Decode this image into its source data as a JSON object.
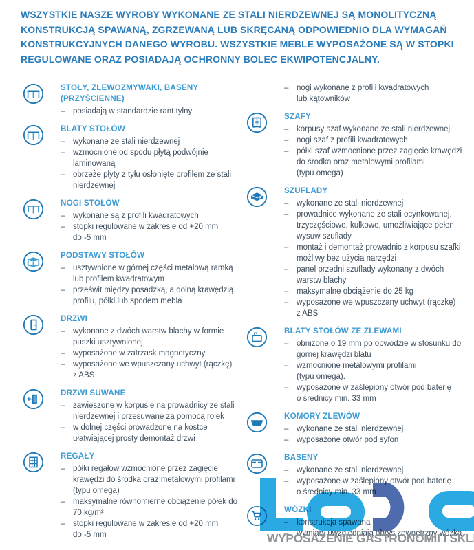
{
  "intro": "WSZYSTKIE NASZE WYROBY  WYKONANE ZE STALI NIERDZEWNEJ SĄ MONOLITYCZNĄ KONSTRUKCJĄ SPAWANĄ, ZGRZEWANĄ LUB SKRĘCANĄ ODPOWIEDNIO DLA WYMAGAŃ KONSTRUKCYJNYCH DANEGO WYROBU. WSZYSTKIE MEBLE WYPOSAŻONE SĄ W STOPKI REGULOWANE ORAZ POSIADAJĄ OCHRONNY BOLEC EKWIPOTENCJALNY.",
  "bullet_marker": "–",
  "columns": {
    "left": [
      {
        "icon": "table-icon",
        "title": "STOŁY, ZLEWOZMYWAKI, BASENY (PRZYŚCIENNE)",
        "bullets": [
          "posiadają w standardzie rant tylny"
        ]
      },
      {
        "icon": "table-icon",
        "title": "BLATY STOŁÓW",
        "bullets": [
          "wykonane ze stali nierdzewnej",
          "wzmocnione od spodu płytą podwójnie\nlaminowaną",
          "obrzeże płyty z tyłu osłonięte profilem ze stali\nnierdzewnej"
        ]
      },
      {
        "icon": "table-legs-icon",
        "title": "NOGI STOŁÓW",
        "bullets": [
          "wykonane są z profili kwadratowych",
          "stopki regulowane w zakresie od +20 mm\ndo -5 mm"
        ]
      },
      {
        "icon": "table-base-icon",
        "title": "PODSTAWY STOŁÓW",
        "bullets": [
          "usztywnione w górnej części  metalową ramką\nlub profilem kwadratowym",
          "prześwit między posadzką, a dolną krawędzią\nprofilu, półki lub spodem mebla"
        ]
      },
      {
        "icon": "door-icon",
        "title": "DRZWI",
        "bullets": [
          "wykonane z dwóch warstw blachy w formie\npuszki usztywnionej",
          "wyposażone w zatrzask magnetyczny",
          "wyposażone we wpuszczany uchwyt (rączkę)\nz ABS"
        ]
      },
      {
        "icon": "sliding-door-icon",
        "title": "DRZWI SUWANE",
        "bullets": [
          "zawieszone w korpusie na prowadnicy ze stali\nnierdzewnej i przesuwane za pomocą rolek",
          "w dolnej części prowadzone na kostce\nułatwiającej prosty demontaż drzwi"
        ]
      },
      {
        "icon": "shelf-rack-icon",
        "title": "REGAŁY",
        "bullets": [
          "półki regałów wzmocnione przez zagięcie\nkrawędzi do środka oraz metalowymi profilami\n(typu omega)",
          "maksymalne równomierne obciążenie półek  do\n70 kg/m²",
          "stopki regulowane w zakresie od +20 mm\ndo -5 mm"
        ]
      }
    ],
    "right": [
      {
        "icon": null,
        "title": "",
        "bullets": [
          "nogi wykonane z profili kwadratowych\nlub kątowników"
        ]
      },
      {
        "icon": "cabinet-icon",
        "title": "SZAFY",
        "bullets": [
          "korpusy szaf wykonane ze stali nierdzewnej",
          "nogi szaf  z profili kwadratowych",
          "półki szaf wzmocnione przez zagięcie krawędzi\ndo środka oraz metalowymi profilami\n(typu omega)"
        ]
      },
      {
        "icon": "drawer-icon",
        "title": "SZUFLADY",
        "bullets": [
          "wykonane ze stali nierdzewnej",
          "prowadnice wykonane ze stali ocynkowanej,\ntrzyczęściowe, kulkowe, umożliwiające pełen\nwysuw szuflady",
          "montaż i demontaż prowadnic z korpusu szafki\nmożliwy bez użycia narzędzi",
          "panel przedni szuflady wykonany z dwóch\nwarstw blachy",
          "maksymalne obciążenie do 25 kg",
          "wyposażone we wpuszczany uchwyt (rączkę)\nz ABS"
        ]
      },
      {
        "icon": "sink-table-icon",
        "title": "BLATY STOŁÓW ZE ZLEWAMI",
        "bullets": [
          "obniżone o 19 mm po obwodzie w stosunku do\ngórnej krawędzi blatu",
          "wzmocnione  metalowymi profilami\n(typu omega).",
          "wyposażone w zaślepiony otwór pod baterię\no średnicy min. 33 mm"
        ]
      },
      {
        "icon": "sink-bowl-icon",
        "title": "KOMORY ZLEWÓW",
        "bullets": [
          "wykonane ze stali nierdzewnej",
          "wyposażone otwór pod syfon"
        ]
      },
      {
        "icon": "basin-icon",
        "title": "BASENY",
        "bullets": [
          "wykonane ze stali nierdzewnej",
          "wyposażone w zaślepiony otwór pod baterię\no średnicy min. 33 mm"
        ]
      },
      {
        "icon": "cart-icon",
        "title": "WÓZKI",
        "bullets": [
          "konstrukcja spawana",
          "wymiary uwzględniają obrys zewnętrzny wózka"
        ]
      }
    ]
  },
  "logo": {
    "text": "LODO",
    "tagline": "WYPOSAŻENIE GASTRONOMII I SKLEPÓW",
    "light_blue": "#2aa9e2",
    "dark_blue": "#4e6bad",
    "tagline_gray": "#8d9296"
  },
  "colors": {
    "intro_blue": "#2b7cba",
    "heading_blue": "#3d9bd3",
    "body_text": "#40505f",
    "icon_stroke": "#1d79b7"
  }
}
